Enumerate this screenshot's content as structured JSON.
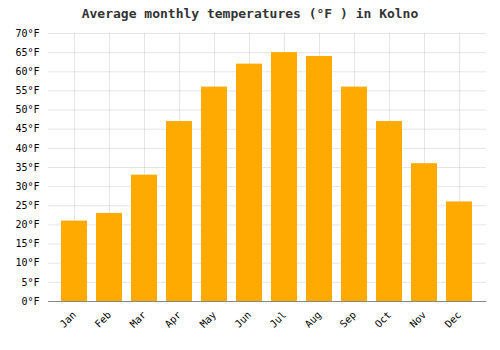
{
  "chart_data": {
    "type": "bar",
    "title": "Average monthly temperatures (°F ) in Kolno",
    "categories": [
      "Jan",
      "Feb",
      "Mar",
      "Apr",
      "May",
      "Jun",
      "Jul",
      "Aug",
      "Sep",
      "Oct",
      "Nov",
      "Dec"
    ],
    "values": [
      21,
      23,
      33,
      47,
      56,
      62,
      65,
      64,
      56,
      47,
      36,
      26
    ],
    "color": "#FFAA00",
    "ylim": [
      0,
      70
    ],
    "yticks": [
      {
        "value": 0,
        "label": "0°F"
      },
      {
        "value": 5,
        "label": "5°F"
      },
      {
        "value": 10,
        "label": "10°F"
      },
      {
        "value": 15,
        "label": "15°F"
      },
      {
        "value": 20,
        "label": "20°F"
      },
      {
        "value": 25,
        "label": "25°F"
      },
      {
        "value": 30,
        "label": "30°F"
      },
      {
        "value": 35,
        "label": "35°F"
      },
      {
        "value": 40,
        "label": "40°F"
      },
      {
        "value": 45,
        "label": "45°F"
      },
      {
        "value": 50,
        "label": "50°F"
      },
      {
        "value": 55,
        "label": "55°F"
      },
      {
        "value": 60,
        "label": "60°F"
      },
      {
        "value": 65,
        "label": "65°F"
      },
      {
        "value": 70,
        "label": "70°F"
      }
    ],
    "grid": true
  }
}
